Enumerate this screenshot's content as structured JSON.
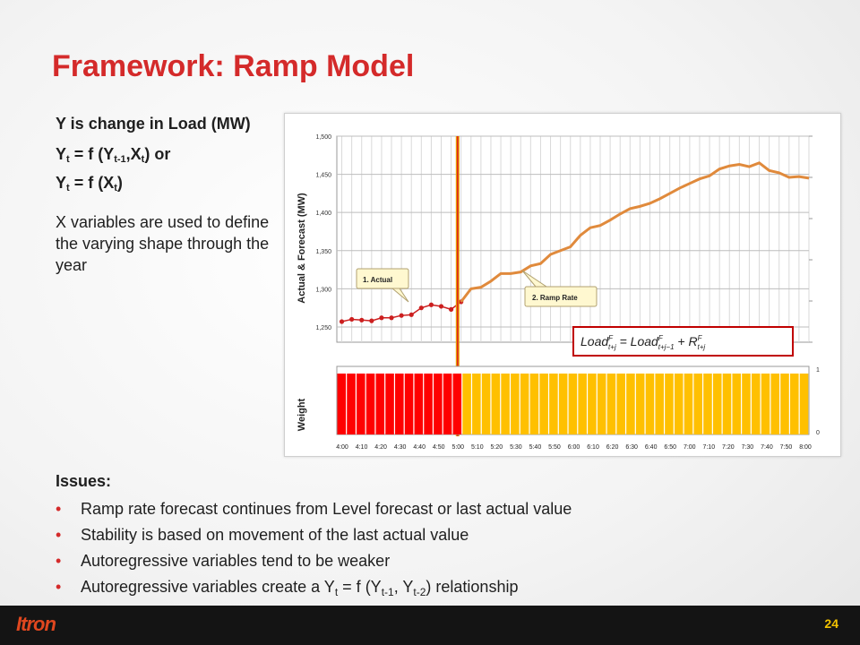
{
  "title": "Framework:  Ramp Model",
  "left": {
    "line1": "Y is change in Load (MW)",
    "eq1": "Y_t = f (Y_{t-1},X_t) or",
    "eq2": "Y_t = f (X_t)",
    "para": "X variables are used to define the varying shape through the year"
  },
  "chart_data": {
    "type": "line",
    "ylabel": "Actual & Forecast (MW)",
    "ylabel2": "Weight",
    "ylim": [
      1230,
      1500
    ],
    "yticks": [
      "1,250",
      "1,300",
      "1,350",
      "1,400",
      "1,450",
      "1,500"
    ],
    "weight_ticks": [
      "1",
      "0"
    ],
    "x": [
      "4:00",
      "4:10",
      "4:20",
      "4:30",
      "4:40",
      "4:50",
      "5:00",
      "5:10",
      "5:20",
      "5:30",
      "5:40",
      "5:50",
      "6:00",
      "6:10",
      "6:20",
      "6:30",
      "6:40",
      "6:50",
      "7:00",
      "7:10",
      "7:20",
      "7:30",
      "7:40",
      "7:50",
      "8:00"
    ],
    "actual": [
      1257,
      1260,
      1259,
      1258,
      1262,
      1262,
      1265,
      1266,
      1275,
      1279,
      1277,
      1273,
      1283
    ],
    "forecast": [
      1283,
      1300,
      1302,
      1310,
      1320,
      1320,
      1322,
      1330,
      1333,
      1345,
      1350,
      1355,
      1370,
      1380,
      1383,
      1390,
      1398,
      1405,
      1408,
      1412,
      1418,
      1425,
      1432,
      1438,
      1444,
      1448,
      1457,
      1461,
      1463,
      1460,
      1465,
      1455,
      1452,
      1446,
      1447,
      1445
    ],
    "annotations": {
      "actual": "1. Actual",
      "ramp": "2. Ramp Rate"
    },
    "formula": "Load^F_{t+j} = Load^F_{t+j-1} + R^F_{t+j}",
    "weights_actual_count": 13,
    "weights_forecast_count": 36
  },
  "issues": {
    "heading": "Issues:",
    "items": [
      "Ramp rate forecast continues from Level forecast or last actual value",
      "Stability is based on movement of the last actual value",
      "Autoregressive variables tend to be weaker",
      "Autoregressive variables create a Y_t = f (Y_{t-1}, Y_{t-2}) relationship"
    ]
  },
  "footer": {
    "logo": "Itron",
    "page": "24"
  },
  "colors": {
    "title": "#d42a2a",
    "actual": "#cc1f1f",
    "forecast": "#e08a3c",
    "vline": "#e6a000",
    "bar_red": "#ff0000",
    "bar_yellow": "#ffc000"
  }
}
